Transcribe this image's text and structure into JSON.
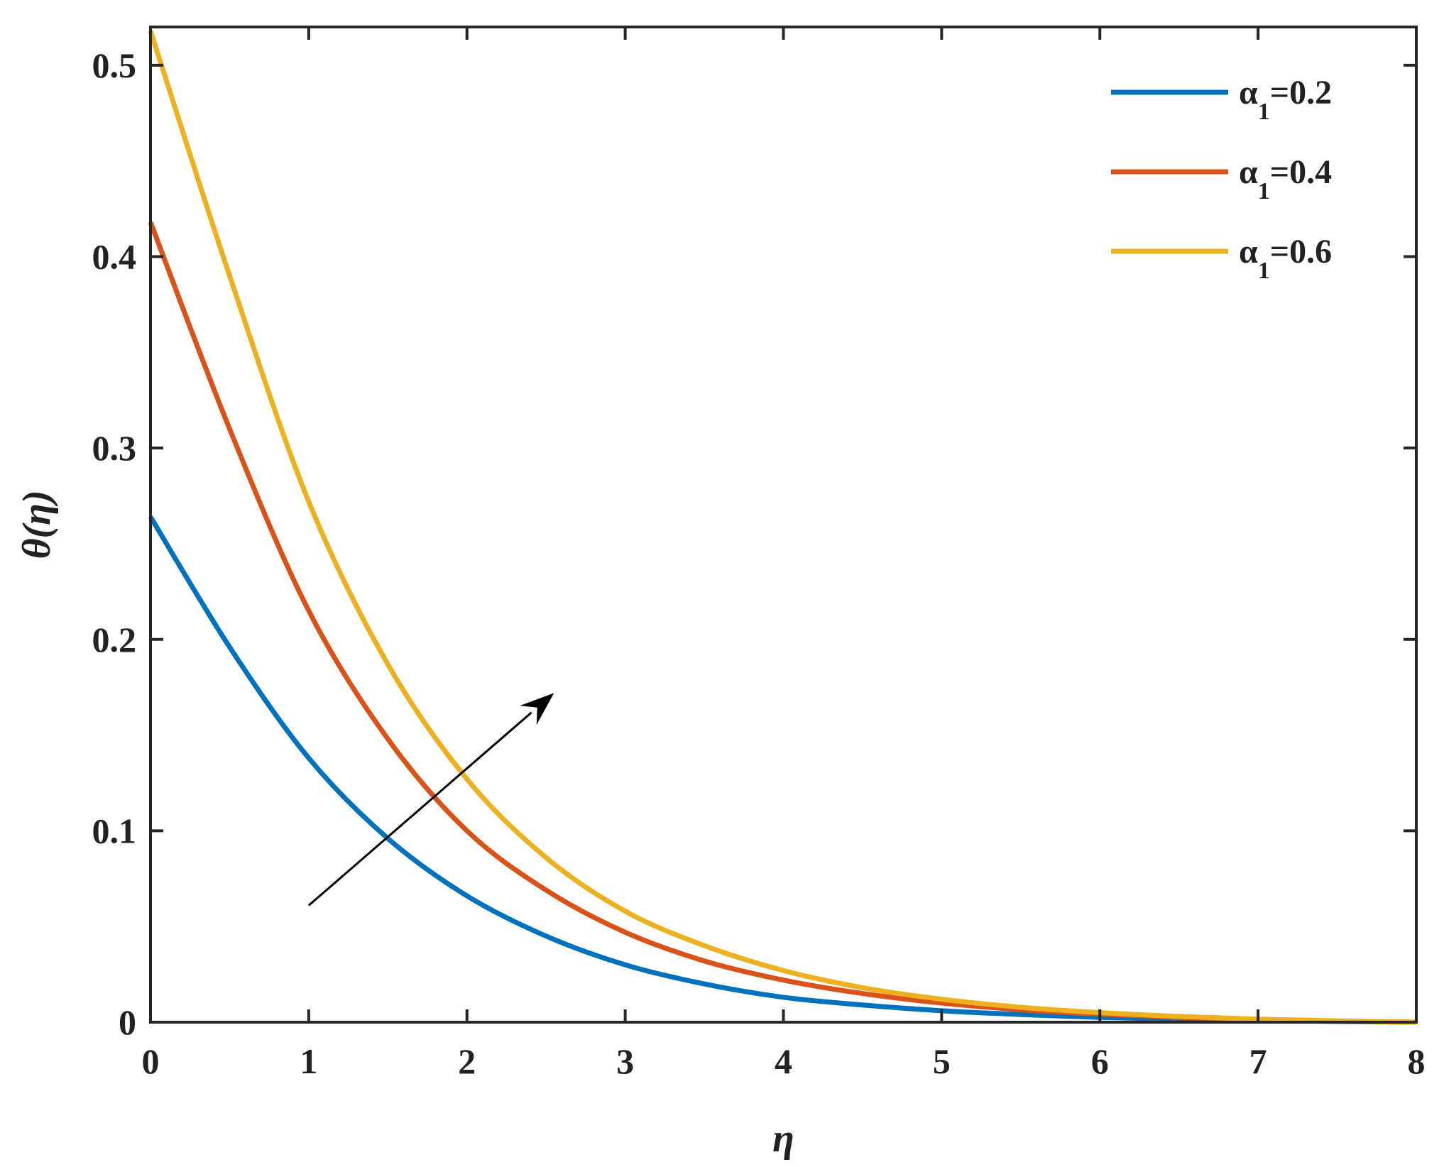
{
  "chart_data": {
    "type": "line",
    "xlabel": "η",
    "ylabel": "θ(η)",
    "xlim": [
      0,
      8
    ],
    "ylim": [
      0,
      0.52
    ],
    "xticks": [
      0,
      1,
      2,
      3,
      4,
      5,
      6,
      7,
      8
    ],
    "yticks": [
      0,
      0.1,
      0.2,
      0.3,
      0.4,
      0.5
    ],
    "xtick_labels": [
      "0",
      "1",
      "2",
      "3",
      "4",
      "5",
      "6",
      "7",
      "8"
    ],
    "ytick_labels": [
      "0",
      "0.1",
      "0.2",
      "0.3",
      "0.4",
      "0.5"
    ],
    "grid": false,
    "legend_position": "top-right",
    "x": [
      0,
      0.5,
      1,
      1.5,
      2,
      2.5,
      3,
      3.5,
      4,
      4.5,
      5,
      5.5,
      6,
      6.5,
      7,
      7.5,
      8
    ],
    "series": [
      {
        "name": "α1=0.2",
        "legend_symbol": "α",
        "legend_sub": "1",
        "legend_value": "=0.2",
        "color": "#0072BD",
        "values": [
          0.264,
          0.196,
          0.138,
          0.096,
          0.066,
          0.045,
          0.03,
          0.02,
          0.013,
          0.009,
          0.006,
          0.004,
          0.0025,
          0.0016,
          0.0009,
          0.0004,
          0.0
        ]
      },
      {
        "name": "α1=0.4",
        "legend_symbol": "α",
        "legend_sub": "1",
        "legend_value": "=0.4",
        "color": "#D95319",
        "values": [
          0.418,
          0.31,
          0.215,
          0.148,
          0.1,
          0.069,
          0.047,
          0.032,
          0.022,
          0.015,
          0.01,
          0.0065,
          0.0042,
          0.0026,
          0.0014,
          0.0006,
          0.0
        ]
      },
      {
        "name": "α1=0.6",
        "legend_symbol": "α",
        "legend_sub": "1",
        "legend_value": "=0.6",
        "color": "#EDB120",
        "values": [
          0.518,
          0.39,
          0.272,
          0.187,
          0.127,
          0.086,
          0.058,
          0.04,
          0.027,
          0.018,
          0.012,
          0.0078,
          0.005,
          0.003,
          0.0016,
          0.0007,
          0.0
        ]
      }
    ],
    "annotations": [
      {
        "type": "arrow",
        "from": [
          1.0,
          0.061
        ],
        "to": [
          2.55,
          0.172
        ],
        "color": "#000000"
      }
    ]
  }
}
